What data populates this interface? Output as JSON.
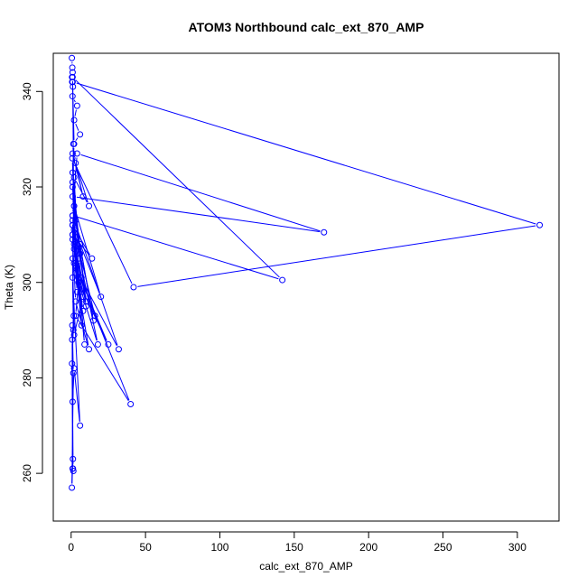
{
  "chart_data": {
    "type": "line",
    "title": "ATOM3 Northbound calc_ext_870_AMP",
    "xlabel": "calc_ext_870_AMP",
    "ylabel": "Theta (K)",
    "xlim": [
      -12,
      328
    ],
    "ylim": [
      250,
      348
    ],
    "xticks": [
      0,
      50,
      100,
      150,
      200,
      250,
      300
    ],
    "yticks": [
      260,
      280,
      300,
      320,
      340
    ],
    "color": "#0000ff",
    "series": [
      {
        "x": [
          0.5,
          0.8,
          1,
          0.6,
          0.7,
          1.2,
          0.9,
          4,
          2,
          6,
          1.5,
          1,
          8,
          3,
          12,
          2,
          5,
          10,
          1,
          3,
          15,
          6,
          2,
          20,
          1,
          4,
          9,
          2,
          16,
          7,
          1,
          3,
          12,
          2,
          25,
          5,
          1,
          8,
          3,
          18,
          1,
          4,
          0.8,
          42,
          315,
          1,
          2,
          1,
          6,
          1,
          170,
          4,
          1,
          142,
          1,
          2,
          1,
          10,
          3,
          32,
          1,
          7,
          2,
          1,
          14,
          1,
          5,
          3,
          40,
          1,
          2,
          8,
          1,
          1.5,
          1,
          6,
          2,
          1,
          1.2,
          0.5,
          1.5,
          0.8,
          1.2,
          0.6,
          1.8,
          0.7,
          1,
          1.5
        ],
        "y": [
          347,
          345,
          344,
          343,
          342,
          341,
          339,
          337,
          334,
          331,
          329,
          327,
          318,
          325,
          316,
          322,
          305,
          295,
          320,
          313,
          292,
          308,
          316,
          297,
          312,
          306,
          287,
          311,
          293,
          301,
          309,
          296,
          286,
          304,
          287,
          300,
          310,
          294,
          302,
          287,
          312,
          298,
          326,
          299,
          312,
          342,
          329,
          323,
          306,
          318,
          310.5,
          327,
          314,
          300.5,
          343,
          308,
          321,
          296,
          303,
          286,
          314,
          291,
          307,
          312,
          305,
          310,
          300,
          293,
          274.5,
          305,
          289,
          297,
          313,
          290,
          301,
          270,
          282,
          275,
          263,
          257,
          281,
          291,
          261,
          283,
          293,
          288,
          261,
          260.5
        ]
      }
    ]
  }
}
